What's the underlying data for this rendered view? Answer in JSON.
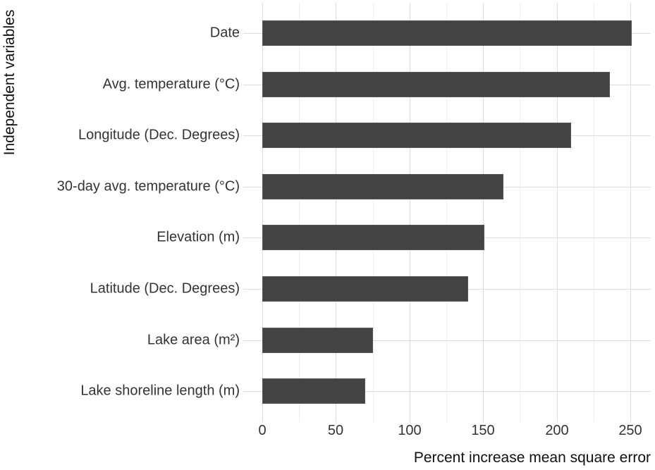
{
  "chart_data": {
    "type": "bar",
    "orientation": "horizontal",
    "title": "",
    "xlabel": "Percent increase mean square error",
    "ylabel": "Independent variables",
    "categories": [
      "Date",
      "Avg. temperature (°C)",
      "Longitude (Dec. Degrees)",
      "30-day avg. temperature (°C)",
      "Elevation (m)",
      "Latitude (Dec. Degrees)",
      "Lake area (m²)",
      "Lake shoreline length (m)"
    ],
    "values": [
      251,
      236,
      210,
      164,
      151,
      140,
      75,
      70
    ],
    "xlim": [
      0,
      263
    ],
    "xticks": [
      "0",
      "50",
      "100",
      "150",
      "200",
      "250"
    ],
    "grid": true,
    "legend": null,
    "bar_color": "#444444",
    "gridline_color": "#dedede"
  }
}
